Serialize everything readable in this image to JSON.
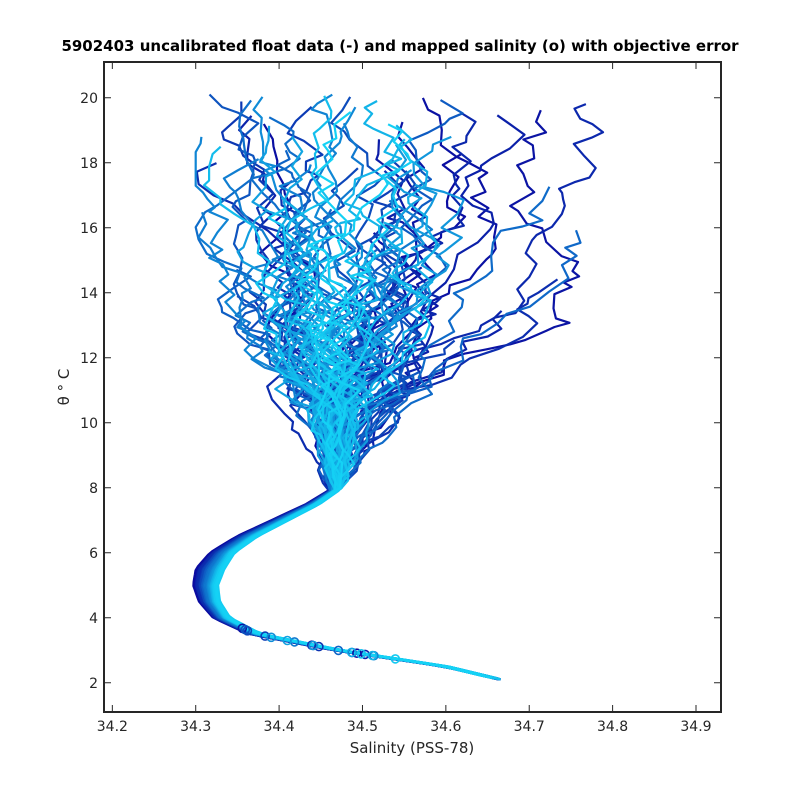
{
  "chart_data": {
    "type": "line",
    "title": "5902403 uncalibrated float data (-) and mapped salinity (o) with objective error",
    "xlabel": "Salinity (PSS-78)",
    "ylabel": "θ ° C",
    "xlim": [
      34.19,
      34.93
    ],
    "ylim": [
      1.1,
      21.1
    ],
    "xticks": [
      34.2,
      34.3,
      34.4,
      34.5,
      34.6,
      34.7,
      34.8,
      34.9
    ],
    "yticks": [
      2,
      4,
      6,
      8,
      10,
      12,
      14,
      16,
      18,
      20
    ],
    "grid": false,
    "legend": "none",
    "colors": {
      "start": "#0a0aa0",
      "end": "#14d2f5",
      "axis": "#262626"
    },
    "profile_count": 120,
    "deep_curve": {
      "theta": [
        2.1,
        2.5,
        3.0,
        3.5,
        4.0,
        4.5,
        5.0,
        5.5,
        6.0,
        6.5,
        7.0,
        7.5,
        8.0
      ],
      "salinity": [
        34.665,
        34.6,
        34.47,
        34.37,
        34.33,
        34.315,
        34.31,
        34.315,
        34.33,
        34.36,
        34.4,
        34.44,
        34.47
      ]
    },
    "upper_layer": {
      "theta_range": [
        8.0,
        20.1
      ],
      "salinity_range": [
        34.3,
        34.84
      ]
    },
    "mapped_salinity_points": {
      "theta_range": [
        2.7,
        3.7
      ],
      "marker": "o"
    }
  }
}
